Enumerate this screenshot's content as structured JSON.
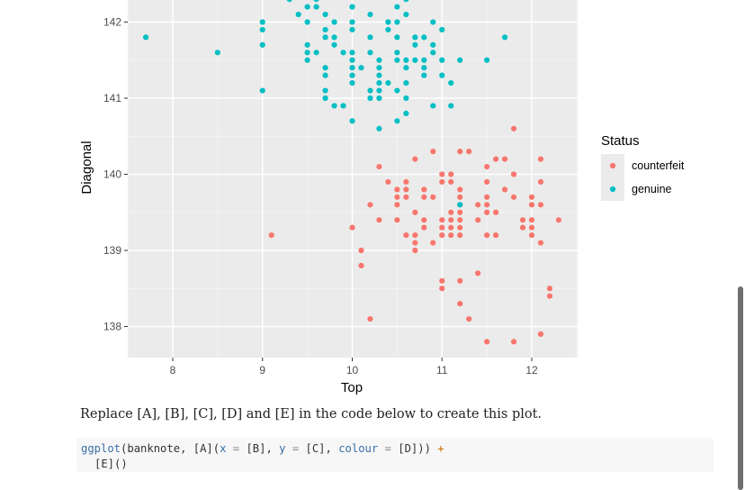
{
  "chart_data": {
    "type": "scatter",
    "xlabel": "Top",
    "ylabel": "Diagonal",
    "xlim": [
      7.5,
      12.5
    ],
    "ylim": [
      137.6,
      142.3
    ],
    "xticks": [
      8,
      9,
      10,
      11,
      12
    ],
    "yticks": [
      138,
      139,
      140,
      141,
      142
    ],
    "grid": true,
    "legend": {
      "title": "Status",
      "position": "right",
      "entries": [
        {
          "label": "counterfeit",
          "color": "#F8766D"
        },
        {
          "label": "genuine",
          "color": "#00BFC4"
        }
      ]
    },
    "series": [
      {
        "name": "counterfeit",
        "color": "#F8766D",
        "points": [
          [
            10.3,
            140.1
          ],
          [
            10.7,
            140.2
          ],
          [
            10.9,
            140.3
          ],
          [
            11.2,
            140.3
          ],
          [
            11.3,
            140.3
          ],
          [
            11.8,
            140.6
          ],
          [
            11.6,
            140.2
          ],
          [
            11.7,
            140.2
          ],
          [
            12.1,
            140.2
          ],
          [
            11.5,
            140.1
          ],
          [
            11.0,
            140.0
          ],
          [
            11.1,
            140.0
          ],
          [
            11.8,
            140.0
          ],
          [
            10.4,
            139.9
          ],
          [
            10.6,
            139.9
          ],
          [
            11.0,
            139.9
          ],
          [
            11.1,
            139.9
          ],
          [
            11.5,
            139.9
          ],
          [
            12.1,
            139.9
          ],
          [
            10.5,
            139.8
          ],
          [
            10.6,
            139.8
          ],
          [
            10.8,
            139.8
          ],
          [
            11.2,
            139.8
          ],
          [
            11.7,
            139.8
          ],
          [
            10.5,
            139.7
          ],
          [
            10.6,
            139.7
          ],
          [
            10.8,
            139.7
          ],
          [
            10.9,
            139.7
          ],
          [
            11.2,
            139.7
          ],
          [
            11.5,
            139.7
          ],
          [
            11.8,
            139.7
          ],
          [
            12.0,
            139.7
          ],
          [
            10.2,
            139.6
          ],
          [
            10.5,
            139.6
          ],
          [
            11.2,
            139.6
          ],
          [
            11.4,
            139.6
          ],
          [
            11.5,
            139.6
          ],
          [
            12.0,
            139.6
          ],
          [
            12.1,
            139.6
          ],
          [
            10.7,
            139.5
          ],
          [
            11.1,
            139.5
          ],
          [
            11.2,
            139.5
          ],
          [
            11.5,
            139.5
          ],
          [
            11.6,
            139.5
          ],
          [
            10.3,
            139.4
          ],
          [
            10.5,
            139.4
          ],
          [
            10.8,
            139.4
          ],
          [
            11.0,
            139.4
          ],
          [
            11.1,
            139.4
          ],
          [
            11.2,
            139.4
          ],
          [
            11.4,
            139.4
          ],
          [
            11.9,
            139.4
          ],
          [
            12.0,
            139.4
          ],
          [
            12.3,
            139.4
          ],
          [
            10.0,
            139.3
          ],
          [
            10.8,
            139.3
          ],
          [
            11.0,
            139.3
          ],
          [
            11.1,
            139.3
          ],
          [
            11.2,
            139.3
          ],
          [
            11.9,
            139.3
          ],
          [
            12.0,
            139.3
          ],
          [
            9.1,
            139.2
          ],
          [
            10.6,
            139.2
          ],
          [
            10.7,
            139.2
          ],
          [
            11.0,
            139.2
          ],
          [
            11.1,
            139.2
          ],
          [
            11.2,
            139.2
          ],
          [
            11.5,
            139.2
          ],
          [
            11.6,
            139.2
          ],
          [
            12.0,
            139.2
          ],
          [
            10.7,
            139.1
          ],
          [
            10.9,
            139.1
          ],
          [
            12.1,
            139.1
          ],
          [
            10.7,
            139.0
          ],
          [
            10.1,
            139.0
          ],
          [
            10.1,
            138.8
          ],
          [
            11.4,
            138.7
          ],
          [
            11.0,
            138.6
          ],
          [
            11.2,
            138.6
          ],
          [
            11.0,
            138.5
          ],
          [
            12.2,
            138.5
          ],
          [
            12.2,
            138.4
          ],
          [
            11.2,
            138.3
          ],
          [
            10.2,
            138.1
          ],
          [
            11.3,
            138.1
          ],
          [
            12.1,
            137.9
          ],
          [
            11.5,
            137.8
          ],
          [
            11.8,
            137.8
          ]
        ]
      },
      {
        "name": "genuine",
        "color": "#00BFC4",
        "points": [
          [
            7.7,
            141.8
          ],
          [
            8.5,
            141.6
          ],
          [
            9.0,
            142.0
          ],
          [
            9.0,
            141.9
          ],
          [
            9.0,
            141.7
          ],
          [
            9.0,
            141.1
          ],
          [
            9.3,
            142.3
          ],
          [
            9.5,
            142.2
          ],
          [
            9.6,
            142.2
          ],
          [
            9.4,
            142.1
          ],
          [
            9.6,
            142.3
          ],
          [
            9.7,
            142.1
          ],
          [
            10.0,
            142.2
          ],
          [
            10.2,
            142.1
          ],
          [
            10.5,
            142.2
          ],
          [
            10.6,
            142.3
          ],
          [
            10.6,
            142.1
          ],
          [
            9.5,
            142.0
          ],
          [
            9.8,
            142.0
          ],
          [
            10.0,
            142.0
          ],
          [
            10.4,
            142.0
          ],
          [
            10.5,
            142.0
          ],
          [
            10.9,
            142.0
          ],
          [
            9.7,
            141.9
          ],
          [
            10.0,
            141.9
          ],
          [
            10.4,
            141.9
          ],
          [
            11.0,
            141.9
          ],
          [
            9.7,
            141.8
          ],
          [
            9.8,
            141.8
          ],
          [
            10.2,
            141.8
          ],
          [
            10.5,
            141.8
          ],
          [
            10.7,
            141.8
          ],
          [
            10.8,
            141.8
          ],
          [
            11.7,
            141.8
          ],
          [
            9.5,
            141.7
          ],
          [
            9.8,
            141.7
          ],
          [
            10.9,
            141.7
          ],
          [
            10.7,
            141.7
          ],
          [
            9.5,
            141.6
          ],
          [
            9.6,
            141.6
          ],
          [
            9.9,
            141.6
          ],
          [
            10.0,
            141.6
          ],
          [
            10.2,
            141.6
          ],
          [
            10.5,
            141.6
          ],
          [
            10.9,
            141.6
          ],
          [
            9.5,
            141.5
          ],
          [
            10.0,
            141.5
          ],
          [
            10.3,
            141.5
          ],
          [
            10.5,
            141.5
          ],
          [
            10.6,
            141.5
          ],
          [
            10.7,
            141.5
          ],
          [
            10.8,
            141.5
          ],
          [
            11.0,
            141.5
          ],
          [
            11.2,
            141.5
          ],
          [
            11.5,
            141.5
          ],
          [
            9.7,
            141.4
          ],
          [
            10.0,
            141.4
          ],
          [
            10.1,
            141.4
          ],
          [
            10.3,
            141.4
          ],
          [
            10.6,
            141.4
          ],
          [
            10.8,
            141.4
          ],
          [
            9.7,
            141.3
          ],
          [
            10.0,
            141.3
          ],
          [
            10.3,
            141.3
          ],
          [
            10.8,
            141.3
          ],
          [
            11.0,
            141.3
          ],
          [
            10.0,
            141.2
          ],
          [
            10.3,
            141.2
          ],
          [
            10.4,
            141.2
          ],
          [
            10.6,
            141.2
          ],
          [
            11.1,
            141.2
          ],
          [
            9.7,
            141.1
          ],
          [
            10.2,
            141.1
          ],
          [
            10.3,
            141.1
          ],
          [
            10.5,
            141.1
          ],
          [
            9.7,
            141.0
          ],
          [
            10.2,
            141.0
          ],
          [
            10.3,
            141.0
          ],
          [
            10.6,
            141.0
          ],
          [
            9.8,
            140.9
          ],
          [
            9.9,
            140.9
          ],
          [
            10.9,
            140.9
          ],
          [
            11.1,
            140.9
          ],
          [
            10.6,
            140.8
          ],
          [
            10.0,
            140.7
          ],
          [
            10.5,
            140.7
          ],
          [
            10.3,
            140.6
          ],
          [
            11.2,
            139.6
          ]
        ]
      }
    ]
  },
  "text": {
    "instruction": "Replace [A], [B], [C], [D] and [E] in the code below to create this plot."
  },
  "code": {
    "line1": [
      {
        "t": "ggplot",
        "c": "tok-fn"
      },
      {
        "t": "(banknote, [A](",
        "c": ""
      },
      {
        "t": "x",
        "c": "tok-arg"
      },
      {
        "t": " = ",
        "c": "tok-op"
      },
      {
        "t": "[B], ",
        "c": ""
      },
      {
        "t": "y",
        "c": "tok-arg"
      },
      {
        "t": " = ",
        "c": "tok-op"
      },
      {
        "t": "[C], ",
        "c": ""
      },
      {
        "t": "colour",
        "c": "tok-arg"
      },
      {
        "t": " = ",
        "c": "tok-op"
      },
      {
        "t": "[D])) ",
        "c": ""
      },
      {
        "t": "+",
        "c": "tok-plus"
      }
    ],
    "line2": [
      {
        "t": "[E]()",
        "c": ""
      }
    ]
  }
}
